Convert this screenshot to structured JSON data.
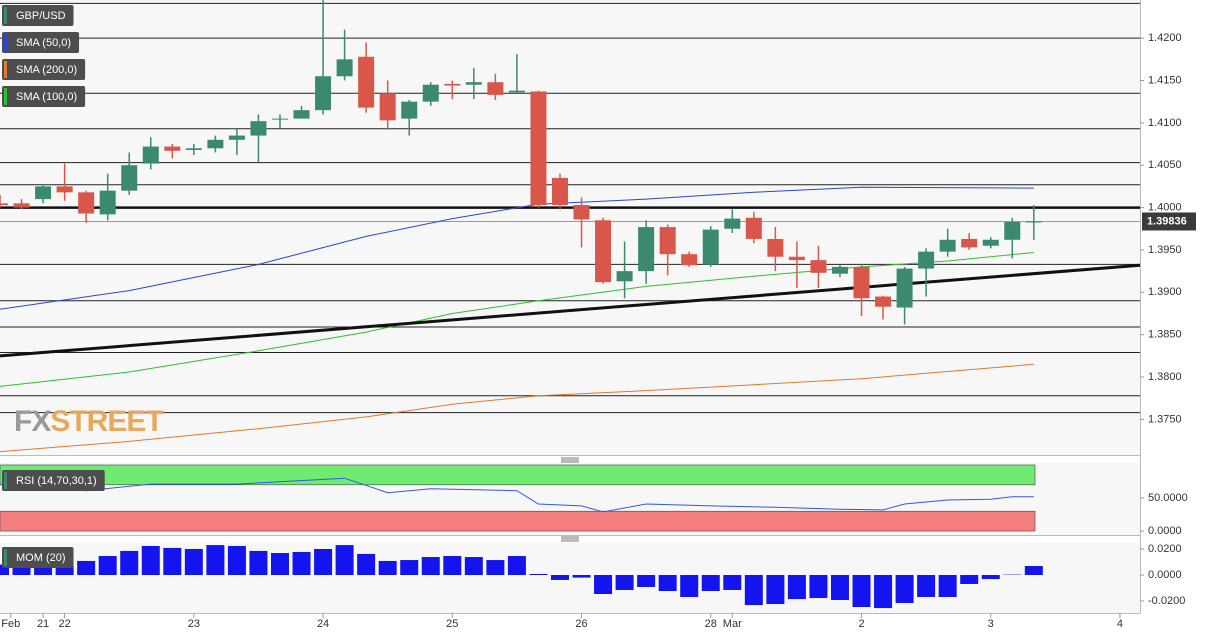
{
  "chart_data": [
    {
      "type": "candlestick",
      "title": "GBP/USD",
      "x": [
        0,
        1,
        2,
        3,
        4,
        5,
        6,
        7,
        8,
        9,
        10,
        11,
        12,
        13,
        14,
        15,
        16,
        17,
        18,
        19,
        20,
        21,
        22,
        23,
        24,
        25,
        26,
        27,
        28,
        29,
        30,
        31,
        32,
        33,
        34,
        35,
        36,
        37,
        38,
        39,
        40,
        41,
        42,
        43,
        44,
        45,
        46,
        47,
        48
      ],
      "open": [
        1.4005,
        1.4005,
        1.401,
        1.4025,
        1.4018,
        1.3992,
        1.402,
        1.4052,
        1.4072,
        1.4068,
        1.407,
        1.408,
        1.4085,
        1.4104,
        1.4105,
        1.4115,
        1.4155,
        1.4178,
        1.4135,
        1.4105,
        1.4125,
        1.4146,
        1.4145,
        1.4148,
        1.4136,
        1.4137,
        1.4035,
        1.4003,
        1.3985,
        1.3913,
        1.3925,
        1.3977,
        1.3945,
        1.3933,
        1.3975,
        1.3988,
        1.3963,
        1.3942,
        1.3938,
        1.3922,
        1.393,
        1.3895,
        1.3882,
        1.3928,
        1.3948,
        1.3963,
        1.3955,
        1.3962,
        1.3983
      ],
      "high": [
        1.4015,
        1.401,
        1.4028,
        1.4052,
        1.402,
        1.404,
        1.4065,
        1.4083,
        1.4075,
        1.4075,
        1.4085,
        1.4093,
        1.411,
        1.411,
        1.412,
        1.4245,
        1.421,
        1.4195,
        1.415,
        1.4127,
        1.4148,
        1.415,
        1.4165,
        1.4158,
        1.4181,
        1.4138,
        1.404,
        1.4012,
        1.3988,
        1.396,
        1.3985,
        1.398,
        1.3948,
        1.3978,
        1.3998,
        1.3995,
        1.3977,
        1.396,
        1.3955,
        1.3933,
        1.3933,
        1.3896,
        1.393,
        1.3952,
        1.3975,
        1.397,
        1.3965,
        1.3988,
        1.4003
      ],
      "low": [
        1.4,
        1.3998,
        1.4005,
        1.4008,
        1.3982,
        1.3985,
        1.4015,
        1.4045,
        1.4058,
        1.4062,
        1.4065,
        1.4062,
        1.4053,
        1.4093,
        1.411,
        1.411,
        1.415,
        1.4112,
        1.4092,
        1.4085,
        1.412,
        1.4128,
        1.4128,
        1.4127,
        1.4135,
        1.4,
        1.3998,
        1.3953,
        1.391,
        1.3893,
        1.391,
        1.392,
        1.393,
        1.393,
        1.397,
        1.3958,
        1.3925,
        1.3905,
        1.3905,
        1.3918,
        1.3872,
        1.3868,
        1.3862,
        1.3895,
        1.3942,
        1.395,
        1.3952,
        1.394,
        1.3962
      ],
      "close": [
        1.4003,
        1.4,
        1.4025,
        1.4018,
        1.3993,
        1.402,
        1.405,
        1.4072,
        1.4067,
        1.407,
        1.408,
        1.4085,
        1.4102,
        1.4105,
        1.4115,
        1.4155,
        1.4175,
        1.4118,
        1.4103,
        1.4125,
        1.4145,
        1.4144,
        1.4148,
        1.4133,
        1.4138,
        1.4003,
        1.4003,
        1.3986,
        1.3912,
        1.3925,
        1.3977,
        1.3945,
        1.3932,
        1.3974,
        1.3987,
        1.3963,
        1.3942,
        1.3938,
        1.3923,
        1.393,
        1.3893,
        1.3883,
        1.3928,
        1.3948,
        1.3962,
        1.3953,
        1.3962,
        1.3983,
        1.39836
      ],
      "color_up": "#3b8a70",
      "color_down": "#d9574a",
      "series": [
        {
          "name": "SMA (50,0)",
          "color": "#2a45d6",
          "x": [
            0,
            6,
            12,
            17,
            21,
            25,
            30,
            35,
            40,
            48
          ],
          "values": [
            1.388,
            1.3902,
            1.3933,
            1.3966,
            1.3987,
            1.4004,
            1.401,
            1.4018,
            1.4024,
            1.4023
          ]
        },
        {
          "name": "SMA (200,0)",
          "color": "#e4782c",
          "x": [
            0,
            6,
            12,
            17,
            21,
            25,
            30,
            35,
            40,
            48
          ],
          "values": [
            1.3712,
            1.3724,
            1.3739,
            1.3753,
            1.3768,
            1.3778,
            1.3784,
            1.3791,
            1.3798,
            1.3815
          ]
        },
        {
          "name": "SMA (100,0)",
          "color": "#2fbf2f",
          "x": [
            0,
            6,
            12,
            17,
            21,
            25,
            30,
            35,
            40,
            44,
            48
          ],
          "values": [
            1.3789,
            1.3806,
            1.3831,
            1.3853,
            1.3875,
            1.389,
            1.3907,
            1.3919,
            1.393,
            1.3937,
            1.3947
          ]
        }
      ],
      "trendline": {
        "x": [
          0,
          52.93
        ],
        "values": [
          1.3825,
          1.3932
        ]
      },
      "levels": [
        1.4241,
        1.42,
        1.4135,
        1.4093,
        1.4053,
        1.4027,
        1.3933,
        1.389,
        1.3859,
        1.3829,
        1.3778,
        1.3758
      ],
      "key_level": 1.4,
      "last_price": 1.39836,
      "ylim": [
        1.3708,
        1.4245
      ],
      "yticks": [
        {
          "value": 1.42,
          "label": "1.4200"
        },
        {
          "value": 1.415,
          "label": "1.4150"
        },
        {
          "value": 1.41,
          "label": "1.4100"
        },
        {
          "value": 1.405,
          "label": "1.4050"
        },
        {
          "value": 1.4,
          "label": "1.4000"
        },
        {
          "value": 1.395,
          "label": "1.3950"
        },
        {
          "value": 1.39,
          "label": "1.3900"
        },
        {
          "value": 1.385,
          "label": "1.3850"
        },
        {
          "value": 1.38,
          "label": "1.3800"
        },
        {
          "value": 1.375,
          "label": "1.3750"
        }
      ],
      "watermark": [
        "FX",
        "STREET"
      ]
    },
    {
      "type": "line",
      "title": "RSI (14,70,30,1)",
      "x": [
        0,
        4,
        7,
        11,
        16,
        18,
        20,
        24,
        25,
        27,
        28,
        30,
        33,
        36,
        39,
        41,
        42,
        44,
        46,
        47,
        48
      ],
      "values": [
        70,
        61,
        71,
        71,
        80,
        58,
        64,
        61,
        41,
        38,
        29,
        41,
        38,
        36,
        33,
        32,
        41,
        47,
        48,
        52,
        52
      ],
      "color": "#3355ee",
      "overbought_zone": [
        70,
        100
      ],
      "oversold_zone": [
        0,
        30
      ],
      "ylim": [
        -6,
        103
      ],
      "yticks": [
        {
          "value": 50,
          "label": "50.0000"
        },
        {
          "value": 0,
          "label": "0.0000"
        }
      ]
    },
    {
      "type": "bar",
      "title": "MOM (20)",
      "x": [
        0,
        1,
        2,
        3,
        4,
        5,
        6,
        7,
        8,
        9,
        10,
        11,
        12,
        13,
        14,
        15,
        16,
        17,
        18,
        19,
        20,
        21,
        22,
        23,
        24,
        25,
        26,
        27,
        28,
        29,
        30,
        31,
        32,
        33,
        34,
        35,
        36,
        37,
        38,
        39,
        40,
        41,
        42,
        43,
        44,
        45,
        46,
        47,
        48
      ],
      "values": [
        0.008,
        0.0077,
        0.007,
        0.007,
        0.0108,
        0.0146,
        0.0185,
        0.0223,
        0.0208,
        0.02,
        0.023,
        0.0223,
        0.0185,
        0.0169,
        0.0177,
        0.02,
        0.023,
        0.0162,
        0.0108,
        0.0115,
        0.0138,
        0.0146,
        0.0138,
        0.0115,
        0.0146,
        0.0008,
        -0.0038,
        -0.002,
        -0.0146,
        -0.0115,
        -0.0092,
        -0.0123,
        -0.0169,
        -0.0123,
        -0.0115,
        -0.0231,
        -0.0223,
        -0.0185,
        -0.0177,
        -0.0192,
        -0.0246,
        -0.0254,
        -0.0215,
        -0.0169,
        -0.0169,
        -0.0069,
        -0.0031,
        0.0003,
        0.0069
      ],
      "color": "#1414ee",
      "ylim": [
        -0.0292,
        0.0246
      ],
      "yticks": [
        {
          "value": 0.02,
          "label": "0.0200"
        },
        {
          "value": 0,
          "label": "0.0000"
        },
        {
          "value": -0.02,
          "label": "-0.0200"
        }
      ],
      "xlim": [
        0,
        52.93
      ],
      "xticks": [
        {
          "value": 0.5,
          "label": "Feb"
        },
        {
          "value": 2,
          "label": "21"
        },
        {
          "value": 3,
          "label": "22"
        },
        {
          "value": 9,
          "label": "23"
        },
        {
          "value": 15,
          "label": "24"
        },
        {
          "value": 21,
          "label": "25"
        },
        {
          "value": 27,
          "label": "26"
        },
        {
          "value": 33,
          "label": "28"
        },
        {
          "value": 34,
          "label": "Mar"
        },
        {
          "value": 40,
          "label": "2"
        },
        {
          "value": 46,
          "label": "3"
        },
        {
          "value": 52,
          "label": "4"
        }
      ]
    }
  ]
}
